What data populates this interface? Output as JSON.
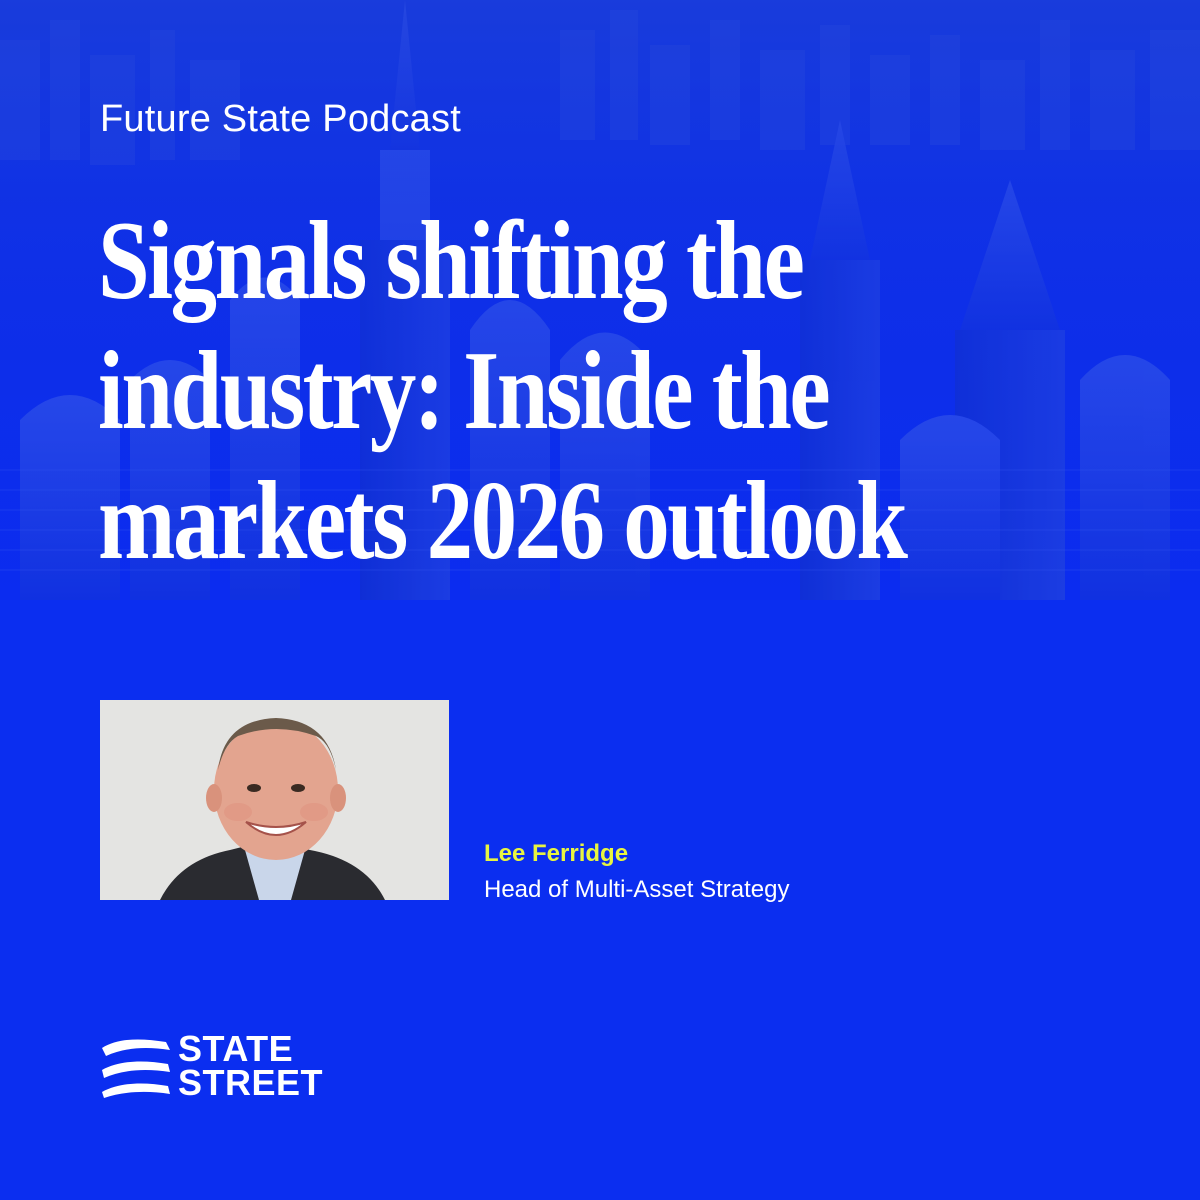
{
  "podcast": {
    "label": "Future State Podcast"
  },
  "headline": {
    "line1": "Signals shifting the",
    "line2": "industry: Inside the",
    "line3": "markets 2026 outlook"
  },
  "speaker": {
    "name": "Lee Ferridge",
    "title": "Head of Multi-Asset Strategy",
    "photo_icon": "portrait-photo"
  },
  "brand": {
    "line1": "STATE",
    "line2": "STREET",
    "mark_icon": "waves-logo-icon"
  },
  "colors": {
    "background": "#0b2ef0",
    "accent_name": "#e8f540",
    "text": "#ffffff",
    "photo_background": "#e4e4e2"
  }
}
